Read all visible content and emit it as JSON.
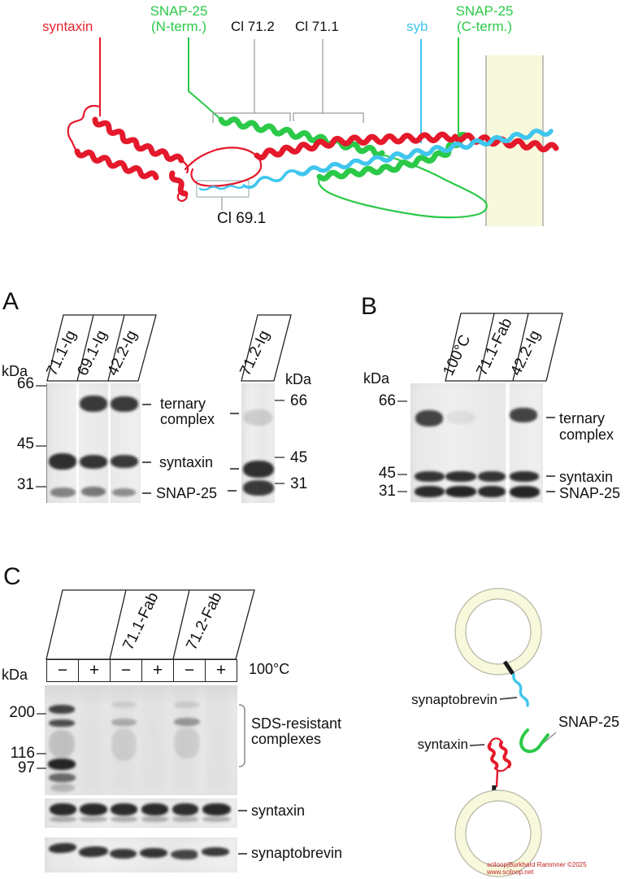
{
  "top": {
    "syntaxin": "syntaxin",
    "snap25_nterm_1": "SNAP-25",
    "snap25_nterm_2": "(N-term.)",
    "cl712": "Cl 71.2",
    "cl711": "Cl 71.1",
    "syb": "syb",
    "snap25_cterm_1": "SNAP-25",
    "snap25_cterm_2": "(C-term.)",
    "cl691": "Cl 69.1"
  },
  "panelA": {
    "letter": "A",
    "kda_left": "kDa",
    "kda_right": "kDa",
    "markers_left": [
      "66",
      "45",
      "31"
    ],
    "markers_right": [
      "66",
      "45",
      "31"
    ],
    "lanes": [
      "71.1-Ig",
      "69.1-Ig",
      "42.2-Ig"
    ],
    "lane_single": "71.2-Ig",
    "labels": {
      "ternary_1": "ternary",
      "ternary_2": "complex",
      "syntaxin": "syntaxin",
      "snap25": "SNAP-25"
    }
  },
  "panelB": {
    "letter": "B",
    "kda": "kDa",
    "markers": [
      "66",
      "45",
      "31"
    ],
    "lanes": [
      "100°C",
      "71.1-Fab",
      "42.2-Ig"
    ],
    "labels": {
      "ternary_1": "ternary",
      "ternary_2": "complex",
      "syntaxin": "syntaxin",
      "snap25": "SNAP-25"
    }
  },
  "panelC": {
    "letter": "C",
    "kda": "kDa",
    "markers": [
      "200",
      "116",
      "97"
    ],
    "groups": [
      "71.1-Fab",
      "71.2-Fab"
    ],
    "signs": [
      "−",
      "+",
      "−",
      "+",
      "−",
      "+"
    ],
    "temp": "100°C",
    "labels": {
      "sds_1": "SDS-resistant",
      "sds_2": "complexes",
      "syntaxin": "syntaxin",
      "synaptobrevin": "synaptobrevin"
    }
  },
  "vesicles": {
    "synaptobrevin": "synaptobrevin",
    "snap25": "SNAP-25",
    "syntaxin": "syntaxin"
  },
  "watermark": "sciloop|Burkhard Rammner ©2025 www.sciloop.net",
  "colors": {
    "syntaxin_red": "#e4192b",
    "snap25_green": "#2bc948",
    "synaptobrevin_cyan": "#3fc6ee",
    "membrane_yellow": "#f8f8dc"
  }
}
